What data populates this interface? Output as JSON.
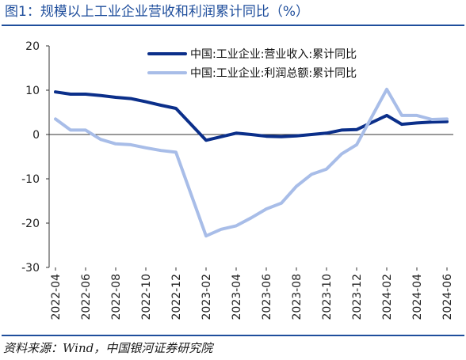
{
  "title": "图1：规模以上工业企业营收和利润累计同比（%）",
  "source": "资料来源：Wind，中国银河证券研究院",
  "colors": {
    "accent": "#1f4e9c"
  },
  "chart_data": {
    "type": "line",
    "ylim": [
      -30,
      20
    ],
    "yticks": [
      20,
      10,
      0,
      -10,
      -20,
      -30
    ],
    "grid": false,
    "legend_position": "top-right",
    "x": [
      "2022-04",
      "2022-05",
      "2022-06",
      "2022-07",
      "2022-08",
      "2022-09",
      "2022-10",
      "2022-11",
      "2022-12",
      "2023-02",
      "2023-03",
      "2023-04",
      "2023-05",
      "2023-06",
      "2023-07",
      "2023-08",
      "2023-09",
      "2023-10",
      "2023-11",
      "2023-12",
      "2024-02",
      "2024-03",
      "2024-04",
      "2024-05",
      "2024-06"
    ],
    "xticks": [
      "2022-04",
      "2022-06",
      "2022-08",
      "2022-10",
      "2022-12",
      "2023-02",
      "2023-04",
      "2023-06",
      "2023-08",
      "2023-10",
      "2023-12",
      "2024-02",
      "2024-04",
      "2024-06"
    ],
    "series": [
      {
        "name": "中国:工业企业:营业收入:累计同比",
        "color": "#0b2f8a",
        "values": [
          9.6,
          9.1,
          9.1,
          8.8,
          8.4,
          8.1,
          7.4,
          6.6,
          5.9,
          -1.3,
          -0.5,
          0.3,
          0.0,
          -0.4,
          -0.5,
          -0.3,
          0.0,
          0.3,
          1.0,
          1.1,
          4.3,
          2.3,
          2.6,
          2.8,
          2.9
        ]
      },
      {
        "name": "中国:工业企业:利润总额:累计同比",
        "color": "#a8bde8",
        "values": [
          3.5,
          1.0,
          1.0,
          -1.1,
          -2.1,
          -2.3,
          -3.0,
          -3.6,
          -4.0,
          -22.9,
          -21.4,
          -20.6,
          -18.8,
          -16.8,
          -15.5,
          -11.7,
          -9.0,
          -7.8,
          -4.4,
          -2.3,
          10.2,
          4.3,
          4.3,
          3.4,
          3.5
        ]
      }
    ]
  }
}
